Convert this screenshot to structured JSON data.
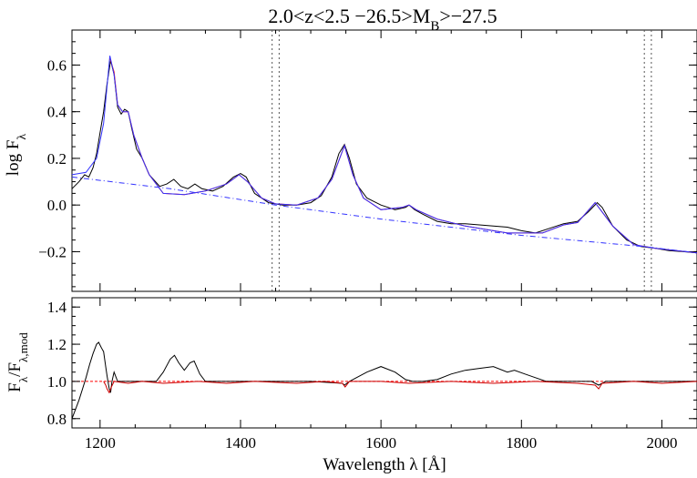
{
  "chart_data": [
    {
      "type": "line",
      "title": "2.0<z<2.5 −26.5>M",
      "title_sub": "B",
      "title_suffix": ">−27.5",
      "ylabel": "log F",
      "ylabel_sub": "λ",
      "xlim": [
        1160,
        2050
      ],
      "ylim": [
        -0.37,
        0.75
      ],
      "yticks": [
        0.6,
        0.4,
        0.2,
        0.0,
        -0.2
      ],
      "ytick_labels": [
        "0.6",
        "0.4",
        "0.2",
        "0.0",
        "−0.2"
      ],
      "vlines": [
        1445,
        1455,
        1975,
        1985
      ],
      "series": [
        {
          "color": "#000000",
          "style": "solid",
          "points": [
            [
              1160,
              0.07
            ],
            [
              1170,
              0.1
            ],
            [
              1178,
              0.13
            ],
            [
              1184,
              0.12
            ],
            [
              1190,
              0.16
            ],
            [
              1195,
              0.22
            ],
            [
              1200,
              0.31
            ],
            [
              1205,
              0.4
            ],
            [
              1210,
              0.52
            ],
            [
              1215,
              0.62
            ],
            [
              1220,
              0.56
            ],
            [
              1225,
              0.42
            ],
            [
              1230,
              0.39
            ],
            [
              1235,
              0.41
            ],
            [
              1240,
              0.4
            ],
            [
              1245,
              0.33
            ],
            [
              1252,
              0.24
            ],
            [
              1260,
              0.2
            ],
            [
              1270,
              0.13
            ],
            [
              1285,
              0.08
            ],
            [
              1295,
              0.09
            ],
            [
              1305,
              0.11
            ],
            [
              1315,
              0.08
            ],
            [
              1325,
              0.07
            ],
            [
              1335,
              0.09
            ],
            [
              1345,
              0.07
            ],
            [
              1360,
              0.06
            ],
            [
              1375,
              0.08
            ],
            [
              1390,
              0.12
            ],
            [
              1400,
              0.135
            ],
            [
              1408,
              0.12
            ],
            [
              1420,
              0.05
            ],
            [
              1440,
              0.01
            ],
            [
              1460,
              0.0
            ],
            [
              1480,
              0.0
            ],
            [
              1500,
              0.01
            ],
            [
              1515,
              0.04
            ],
            [
              1530,
              0.12
            ],
            [
              1540,
              0.22
            ],
            [
              1548,
              0.26
            ],
            [
              1555,
              0.2
            ],
            [
              1565,
              0.09
            ],
            [
              1580,
              0.03
            ],
            [
              1600,
              0.0
            ],
            [
              1620,
              -0.02
            ],
            [
              1635,
              -0.01
            ],
            [
              1640,
              0.0
            ],
            [
              1648,
              -0.02
            ],
            [
              1660,
              -0.04
            ],
            [
              1680,
              -0.07
            ],
            [
              1700,
              -0.08
            ],
            [
              1720,
              -0.08
            ],
            [
              1740,
              -0.085
            ],
            [
              1760,
              -0.09
            ],
            [
              1780,
              -0.095
            ],
            [
              1800,
              -0.11
            ],
            [
              1820,
              -0.12
            ],
            [
              1840,
              -0.1
            ],
            [
              1860,
              -0.08
            ],
            [
              1880,
              -0.07
            ],
            [
              1895,
              -0.03
            ],
            [
              1908,
              0.01
            ],
            [
              1915,
              -0.01
            ],
            [
              1930,
              -0.09
            ],
            [
              1950,
              -0.15
            ],
            [
              1970,
              -0.178
            ],
            [
              1990,
              -0.185
            ],
            [
              2010,
              -0.195
            ],
            [
              2030,
              -0.2
            ],
            [
              2050,
              -0.205
            ]
          ]
        },
        {
          "color": "#ff0000",
          "style": "solid",
          "points": [
            [
              1214,
              0.63
            ],
            [
              1220,
              0.57
            ],
            [
              1225,
              0.43
            ],
            [
              1232,
              0.4
            ],
            [
              1240,
              0.4
            ],
            [
              1248,
              0.3
            ],
            [
              1260,
              0.2
            ],
            [
              1270,
              0.13
            ],
            [
              1290,
              0.05
            ],
            [
              1320,
              0.045
            ],
            [
              1350,
              0.06
            ],
            [
              1380,
              0.09
            ],
            [
              1398,
              0.13
            ],
            [
              1410,
              0.1
            ],
            [
              1430,
              0.03
            ],
            [
              1450,
              0.005
            ],
            [
              1480,
              0.0
            ],
            [
              1510,
              0.03
            ],
            [
              1530,
              0.11
            ],
            [
              1548,
              0.255
            ],
            [
              1560,
              0.13
            ],
            [
              1575,
              0.03
            ],
            [
              1600,
              -0.02
            ],
            [
              1630,
              -0.01
            ],
            [
              1640,
              0.0
            ],
            [
              1650,
              -0.02
            ],
            [
              1680,
              -0.06
            ],
            [
              1720,
              -0.09
            ],
            [
              1780,
              -0.12
            ],
            [
              1830,
              -0.12
            ],
            [
              1860,
              -0.085
            ],
            [
              1880,
              -0.075
            ],
            [
              1905,
              0.01
            ],
            [
              1930,
              -0.09
            ],
            [
              1960,
              -0.17
            ],
            [
              1990,
              -0.185
            ],
            [
              2050,
              -0.205
            ]
          ]
        },
        {
          "color": "#3333ff",
          "style": "solid",
          "points": [
            [
              1160,
              0.13
            ],
            [
              1180,
              0.14
            ],
            [
              1195,
              0.2
            ],
            [
              1205,
              0.35
            ],
            [
              1214,
              0.64
            ],
            [
              1220,
              0.56
            ],
            [
              1225,
              0.43
            ],
            [
              1232,
              0.4
            ],
            [
              1240,
              0.4
            ],
            [
              1248,
              0.3
            ],
            [
              1260,
              0.2
            ],
            [
              1270,
              0.13
            ],
            [
              1290,
              0.05
            ],
            [
              1320,
              0.045
            ],
            [
              1350,
              0.06
            ],
            [
              1380,
              0.09
            ],
            [
              1398,
              0.13
            ],
            [
              1410,
              0.1
            ],
            [
              1430,
              0.03
            ],
            [
              1450,
              0.005
            ],
            [
              1480,
              0.0
            ],
            [
              1510,
              0.03
            ],
            [
              1530,
              0.11
            ],
            [
              1548,
              0.255
            ],
            [
              1560,
              0.13
            ],
            [
              1575,
              0.03
            ],
            [
              1600,
              -0.02
            ],
            [
              1630,
              -0.01
            ],
            [
              1640,
              0.0
            ],
            [
              1650,
              -0.02
            ],
            [
              1680,
              -0.06
            ],
            [
              1720,
              -0.09
            ],
            [
              1780,
              -0.12
            ],
            [
              1830,
              -0.12
            ],
            [
              1860,
              -0.085
            ],
            [
              1880,
              -0.075
            ],
            [
              1905,
              0.01
            ],
            [
              1930,
              -0.09
            ],
            [
              1960,
              -0.17
            ],
            [
              1990,
              -0.185
            ],
            [
              2050,
              -0.205
            ]
          ]
        },
        {
          "color": "#3333ff",
          "style": "dashdot",
          "points": [
            [
              1160,
              0.12
            ],
            [
              1300,
              0.07
            ],
            [
              1450,
              0.0
            ],
            [
              1600,
              -0.06
            ],
            [
              1800,
              -0.13
            ],
            [
              1980,
              -0.18
            ],
            [
              2050,
              -0.205
            ]
          ]
        }
      ]
    },
    {
      "type": "line",
      "xlabel": "Wavelength λ [Å]",
      "ylabel": "F",
      "ylabel_sub": "λ",
      "ylabel_mid": "/F",
      "ylabel_sub2": "λ,mod",
      "xlim": [
        1160,
        2050
      ],
      "ylim": [
        0.75,
        1.45
      ],
      "xticks": [
        1200,
        1400,
        1600,
        1800,
        2000
      ],
      "xtick_labels": [
        "1200",
        "1400",
        "1600",
        "1800",
        "2000"
      ],
      "yticks": [
        1.4,
        1.2,
        1.0,
        0.8
      ],
      "ytick_labels": [
        "1.4",
        "1.2",
        "1.0",
        "0.8"
      ],
      "hline": 1.0,
      "series": [
        {
          "color": "#000000",
          "style": "solid",
          "points": [
            [
              1160,
              0.8
            ],
            [
              1165,
              0.85
            ],
            [
              1170,
              0.9
            ],
            [
              1175,
              0.96
            ],
            [
              1180,
              1.02
            ],
            [
              1185,
              1.09
            ],
            [
              1190,
              1.15
            ],
            [
              1195,
              1.2
            ],
            [
              1198,
              1.21
            ],
            [
              1202,
              1.18
            ],
            [
              1205,
              1.16
            ],
            [
              1208,
              1.08
            ],
            [
              1210,
              1.03
            ],
            [
              1213,
              0.96
            ],
            [
              1215,
              0.94
            ],
            [
              1217,
              1.0
            ],
            [
              1220,
              1.05
            ],
            [
              1225,
              1.0
            ],
            [
              1230,
              1.0
            ],
            [
              1260,
              1.0
            ],
            [
              1280,
              1.0
            ],
            [
              1290,
              1.05
            ],
            [
              1300,
              1.12
            ],
            [
              1306,
              1.14
            ],
            [
              1312,
              1.1
            ],
            [
              1320,
              1.06
            ],
            [
              1328,
              1.1
            ],
            [
              1334,
              1.11
            ],
            [
              1342,
              1.04
            ],
            [
              1350,
              1.0
            ],
            [
              1400,
              1.0
            ],
            [
              1500,
              1.0
            ],
            [
              1545,
              0.99
            ],
            [
              1548,
              0.98
            ],
            [
              1555,
              1.0
            ],
            [
              1565,
              1.02
            ],
            [
              1580,
              1.05
            ],
            [
              1600,
              1.08
            ],
            [
              1620,
              1.05
            ],
            [
              1635,
              1.01
            ],
            [
              1645,
              1.0
            ],
            [
              1660,
              1.0
            ],
            [
              1680,
              1.01
            ],
            [
              1700,
              1.04
            ],
            [
              1720,
              1.06
            ],
            [
              1740,
              1.07
            ],
            [
              1760,
              1.08
            ],
            [
              1780,
              1.05
            ],
            [
              1790,
              1.06
            ],
            [
              1805,
              1.04
            ],
            [
              1820,
              1.02
            ],
            [
              1835,
              1.0
            ],
            [
              1850,
              1.0
            ],
            [
              1900,
              1.0
            ],
            [
              1905,
              0.99
            ],
            [
              1910,
              0.98
            ],
            [
              1920,
              1.0
            ],
            [
              1960,
              1.0
            ],
            [
              2000,
              1.0
            ],
            [
              2050,
              1.0
            ]
          ]
        },
        {
          "color": "#cc0000",
          "style": "solid",
          "points": [
            [
              1205,
              1.0
            ],
            [
              1208,
              0.98
            ],
            [
              1210,
              0.96
            ],
            [
              1213,
              0.94
            ],
            [
              1216,
              0.97
            ],
            [
              1220,
              1.0
            ],
            [
              1240,
              0.99
            ],
            [
              1260,
              1.0
            ],
            [
              1290,
              0.99
            ],
            [
              1340,
              1.0
            ],
            [
              1380,
              0.99
            ],
            [
              1420,
              1.0
            ],
            [
              1480,
              0.99
            ],
            [
              1520,
              1.0
            ],
            [
              1545,
              0.99
            ],
            [
              1549,
              0.97
            ],
            [
              1555,
              1.0
            ],
            [
              1600,
              1.0
            ],
            [
              1640,
              0.99
            ],
            [
              1700,
              1.0
            ],
            [
              1760,
              0.99
            ],
            [
              1820,
              1.0
            ],
            [
              1880,
              0.99
            ],
            [
              1905,
              0.98
            ],
            [
              1910,
              0.96
            ],
            [
              1915,
              0.99
            ],
            [
              1960,
              1.0
            ],
            [
              2000,
              0.99
            ],
            [
              2050,
              1.0
            ]
          ]
        }
      ]
    }
  ]
}
